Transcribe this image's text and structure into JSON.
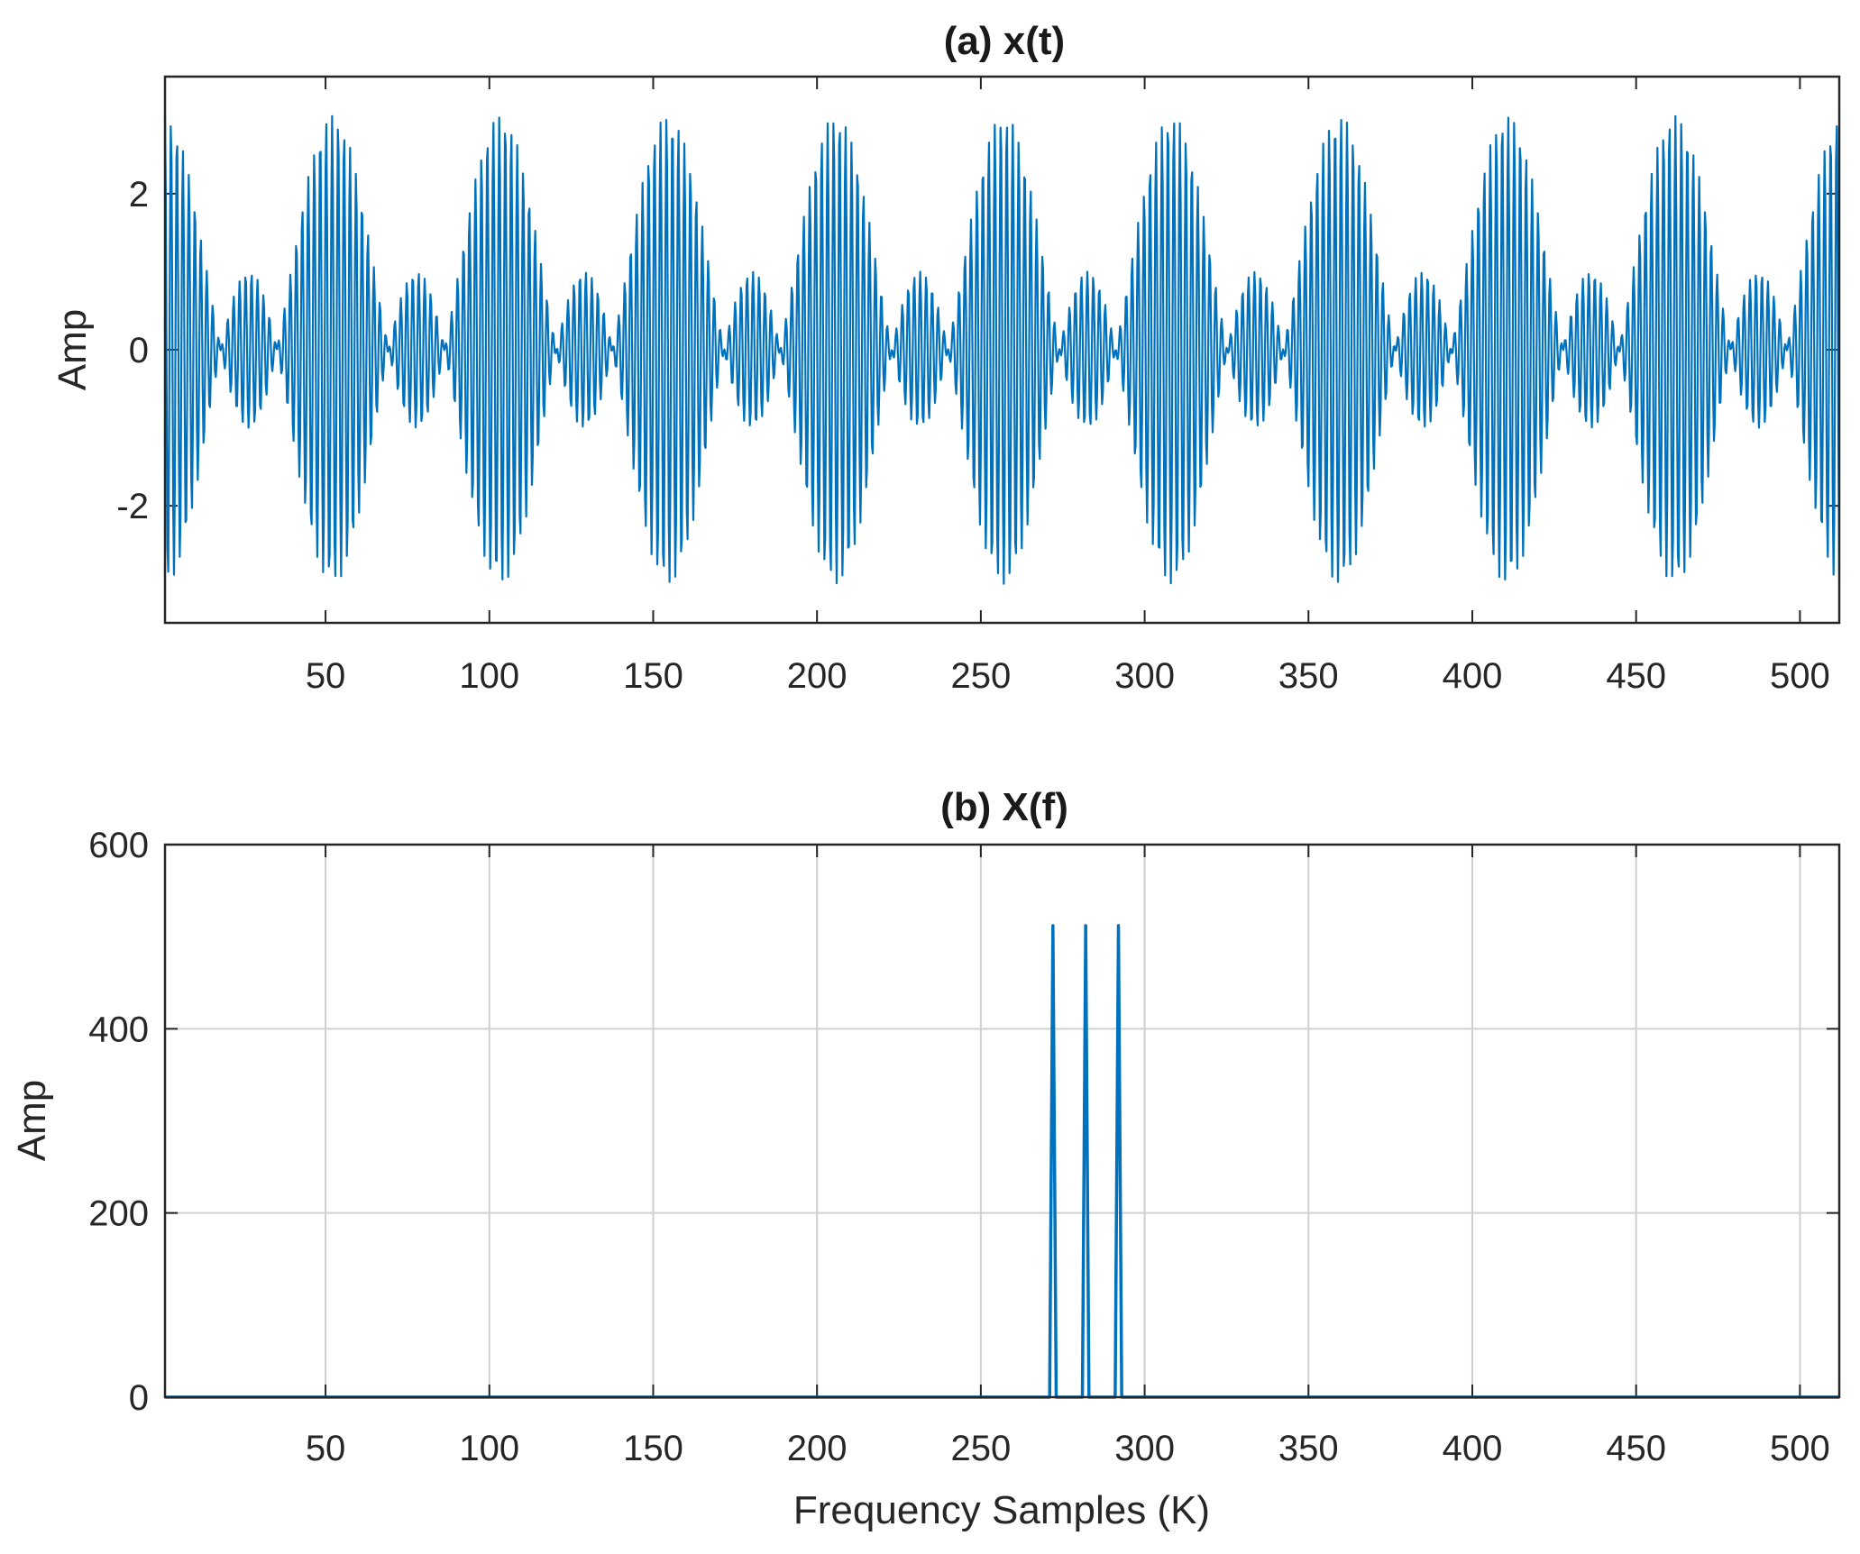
{
  "chart_data": [
    {
      "type": "line",
      "title": "(a) x(t)",
      "xlabel": "",
      "ylabel": "Amp",
      "xlim": [
        1,
        512
      ],
      "ylim": [
        -3.5,
        3.5
      ],
      "xticks": [
        50,
        100,
        150,
        200,
        250,
        300,
        350,
        400,
        450,
        500
      ],
      "yticks": [
        -2,
        0,
        2
      ],
      "grid": false,
      "color": "#0072BD",
      "series": [
        {
          "components": [
            {
              "frequency_bin": 272,
              "amplitude": 1
            },
            {
              "frequency_bin": 282,
              "amplitude": 1
            },
            {
              "frequency_bin": 292,
              "amplitude": 1
            }
          ],
          "samples": 512,
          "peak_amplitude": 3,
          "envelope_period_samples": 51.2
        }
      ]
    },
    {
      "type": "line",
      "title": "(b) X(f)",
      "xlabel": "Frequency Samples (K)",
      "ylabel": "Amp",
      "xlim": [
        1,
        512
      ],
      "ylim": [
        0,
        600
      ],
      "xticks": [
        50,
        100,
        150,
        200,
        250,
        300,
        350,
        400,
        450,
        500
      ],
      "yticks": [
        0,
        200,
        400,
        600
      ],
      "grid": true,
      "color": "#0072BD",
      "series": [
        {
          "x": [
            1,
            271,
            272,
            273,
            281,
            282,
            283,
            291,
            292,
            293,
            512
          ],
          "y": [
            0,
            0,
            512,
            0,
            0,
            512,
            0,
            0,
            512,
            0,
            0
          ]
        }
      ]
    }
  ]
}
